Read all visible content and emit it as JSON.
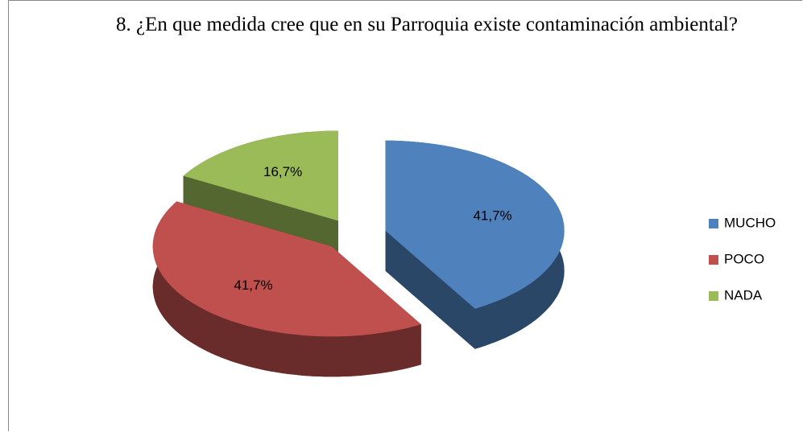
{
  "chart_data": {
    "type": "pie",
    "title": "8. ¿En que medida cree que en su Parroquia  existe contaminación ambiental?",
    "categories": [
      "MUCHO",
      "POCO",
      "NADA"
    ],
    "values": [
      41.7,
      41.7,
      16.7
    ],
    "value_labels": [
      "41,7%",
      "41,7%",
      "16,7%"
    ],
    "colors": [
      "#4f81bd",
      "#c0504d",
      "#9bbb59"
    ],
    "legend": "right"
  }
}
